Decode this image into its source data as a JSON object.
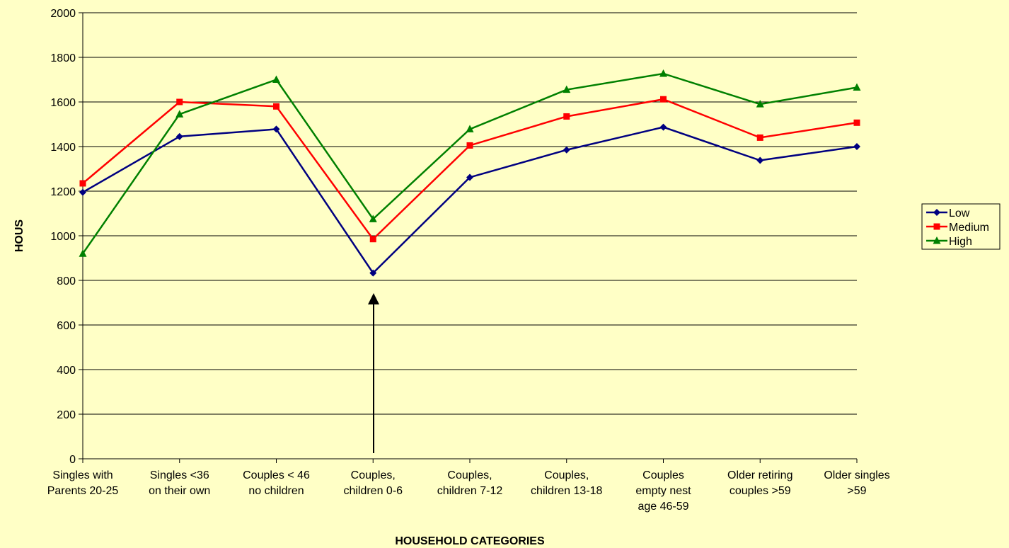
{
  "chart_data": {
    "type": "line",
    "xlabel": "HOUSEHOLD CATEGORIES",
    "ylabel": "HOUS",
    "categories": [
      "Singles with\nParents 20-25",
      "Singles  <36\non their own",
      "Couples < 46\nno children",
      "Couples,\nchildren 0-6",
      "Couples,\nchildren 7-12",
      "Couples,\nchildren 13-18",
      "Couples\nempty nest\nage 46-59",
      "Older retiring\ncouples >59",
      "Older singles\n>59"
    ],
    "series": [
      {
        "name": "Low",
        "color": "#000080",
        "marker": "diamond",
        "values": [
          1195,
          1445,
          1478,
          833,
          1262,
          1385,
          1487,
          1338,
          1400
        ]
      },
      {
        "name": "Medium",
        "color": "#ff0000",
        "marker": "square",
        "values": [
          1235,
          1600,
          1580,
          985,
          1405,
          1535,
          1612,
          1440,
          1507
        ]
      },
      {
        "name": "High",
        "color": "#008000",
        "marker": "triangle",
        "values": [
          920,
          1545,
          1700,
          1075,
          1478,
          1655,
          1727,
          1590,
          1665
        ]
      }
    ],
    "ylim": [
      0,
      2000
    ],
    "yticks": [
      0,
      200,
      400,
      600,
      800,
      1000,
      1200,
      1400,
      1600,
      1800,
      2000
    ],
    "grid": true
  }
}
